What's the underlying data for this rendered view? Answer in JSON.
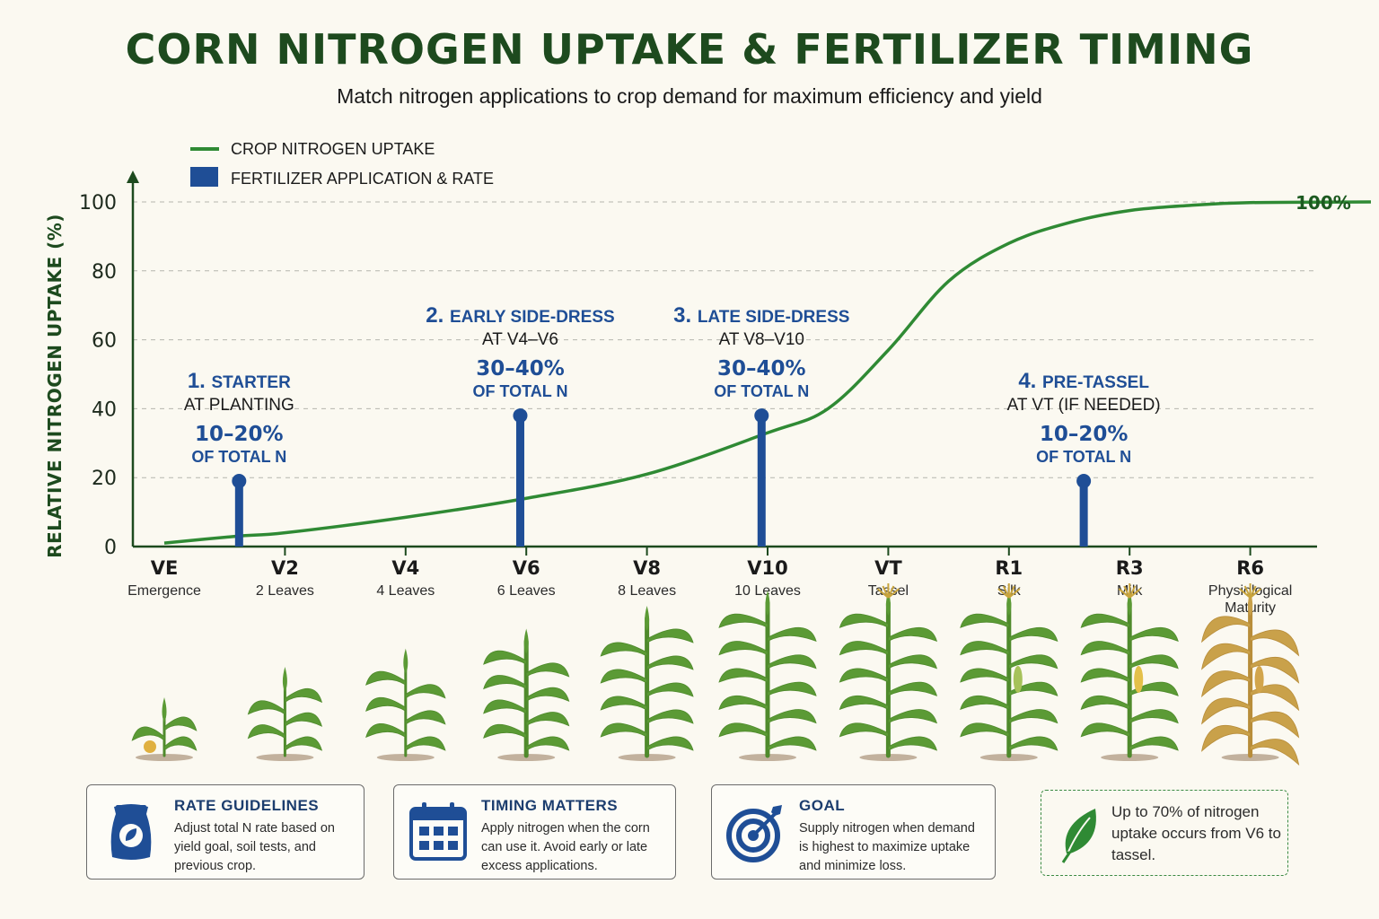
{
  "header": {
    "title": "CORN NITROGEN UPTAKE & FERTILIZER TIMING",
    "subtitle": "Match nitrogen applications to crop demand for maximum efficiency and yield"
  },
  "colors": {
    "uptake_line": "#2f8a34",
    "application": "#1f4e96",
    "title": "#1d4a1e",
    "axis": "#1d4a1e"
  },
  "chart_data": {
    "type": "line",
    "title": "",
    "ylabel": "RELATIVE NITROGEN UPTAKE (%)",
    "xlabel": "",
    "ylim": [
      0,
      100
    ],
    "yticks": [
      0,
      20,
      40,
      60,
      80,
      100
    ],
    "grid": true,
    "legend_placement": "top-left",
    "legend": [
      {
        "label": "CROP NITROGEN UPTAKE",
        "kind": "line"
      },
      {
        "label": "FERTILIZER APPLICATION & RATE",
        "kind": "bar"
      }
    ],
    "stages": [
      {
        "code": "VE",
        "label": "Emergence"
      },
      {
        "code": "V2",
        "label": "2 Leaves"
      },
      {
        "code": "V4",
        "label": "4 Leaves"
      },
      {
        "code": "V6",
        "label": "6 Leaves"
      },
      {
        "code": "V8",
        "label": "8 Leaves"
      },
      {
        "code": "V10",
        "label": "10 Leaves"
      },
      {
        "code": "VT",
        "label": "Tassel"
      },
      {
        "code": "R1",
        "label": "Silk"
      },
      {
        "code": "R3",
        "label": "Milk"
      },
      {
        "code": "R6",
        "label": "Physiological Maturity"
      }
    ],
    "uptake_series": {
      "name": "CROP NITROGEN UPTAKE",
      "x": [
        0,
        0.6,
        1,
        2,
        3,
        4,
        5,
        5.5,
        6,
        6.5,
        7,
        7.5,
        8,
        8.5,
        9,
        10
      ],
      "y": [
        1,
        3,
        4,
        8.5,
        14,
        21,
        33,
        40,
        57,
        77,
        88,
        94,
        97.5,
        99,
        99.8,
        100
      ]
    },
    "end_label": "100%",
    "applications": [
      {
        "x": 0.62,
        "value": 19,
        "num": "1.",
        "name": "STARTER",
        "timing": "AT PLANTING",
        "rate": "10–20%",
        "rate_unit": "OF TOTAL N"
      },
      {
        "x": 2.95,
        "value": 38,
        "num": "2.",
        "name": "EARLY SIDE-DRESS",
        "timing": "AT V4–V6",
        "rate": "30–40%",
        "rate_unit": "OF TOTAL N"
      },
      {
        "x": 4.95,
        "value": 38,
        "num": "3.",
        "name": "LATE SIDE-DRESS",
        "timing": "AT V8–V10",
        "rate": "30–40%",
        "rate_unit": "OF TOTAL N"
      },
      {
        "x": 7.62,
        "value": 19,
        "num": "4.",
        "name": "PRE-TASSEL",
        "timing": "AT VT (IF NEEDED)",
        "rate": "10–20%",
        "rate_unit": "OF TOTAL N"
      }
    ]
  },
  "cards": [
    {
      "icon": "fertilizer-bag-icon",
      "title": "RATE GUIDELINES",
      "text": "Adjust total N rate based on yield goal, soil tests, and previous crop."
    },
    {
      "icon": "calendar-icon",
      "title": "TIMING MATTERS",
      "text": "Apply nitrogen when the corn can use it. Avoid early or late excess applications."
    },
    {
      "icon": "target-icon",
      "title": "GOAL",
      "text": "Supply nitrogen when demand is highest to maximize uptake and minimize loss."
    }
  ],
  "note": {
    "icon": "leaf-icon",
    "text": "Up to 70% of nitrogen uptake occurs from V6 to tassel."
  }
}
